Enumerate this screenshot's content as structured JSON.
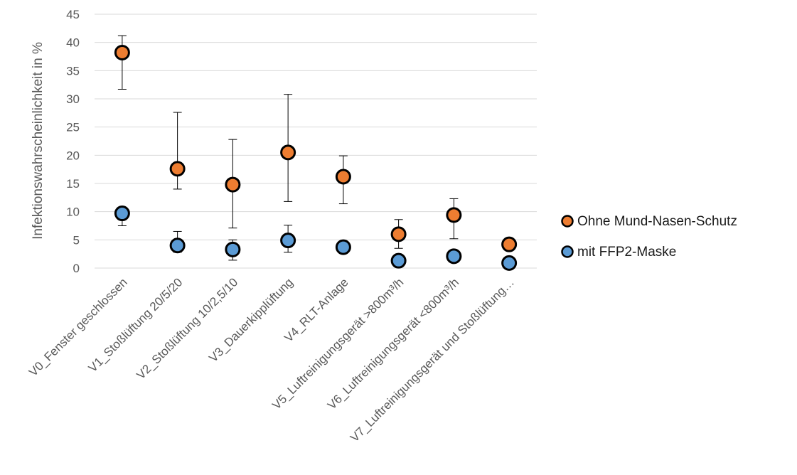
{
  "chart_data": {
    "type": "scatter",
    "ylabel": "Infektionswahrscheinlichkeit in %",
    "xlabel": "",
    "title": "",
    "ylim": [
      0,
      45
    ],
    "yticks": [
      0,
      5,
      10,
      15,
      20,
      25,
      30,
      35,
      40,
      45
    ],
    "grid": true,
    "legend_position": "right",
    "categories": [
      "V0_Fenster geschlossen",
      "V1_Stoßlüftung 20/5/20",
      "V2_Stoßlüftung 10/2,5/10",
      "V3_Dauerkipplüftung",
      "V4_RLT-Anlage",
      "V5_Luftreinigungsgerät >800m³/h",
      "V6_Luftreinigungsgerät <800m³/h",
      "V7_Luftreinigungsgerät und Stoßlüftung…"
    ],
    "series": [
      {
        "name": "Ohne Mund-Nasen-Schutz",
        "color": "#ED7D31",
        "values": [
          38.2,
          17.6,
          14.8,
          20.5,
          16.2,
          6.0,
          9.4,
          4.2
        ],
        "error_upper": [
          41.2,
          27.6,
          22.8,
          30.8,
          19.9,
          8.6,
          12.3,
          null
        ],
        "error_lower": [
          31.7,
          14.0,
          7.1,
          11.8,
          11.4,
          3.5,
          5.2,
          null
        ]
      },
      {
        "name": "mit FFP2-Maske",
        "color": "#5B9BD5",
        "values": [
          9.7,
          4.0,
          3.3,
          4.9,
          3.7,
          1.3,
          2.1,
          0.9
        ],
        "error_upper": [
          null,
          6.5,
          5.0,
          7.6,
          null,
          null,
          null,
          null
        ],
        "error_lower": [
          7.5,
          2.8,
          1.4,
          2.8,
          null,
          null,
          null,
          null
        ]
      }
    ]
  }
}
